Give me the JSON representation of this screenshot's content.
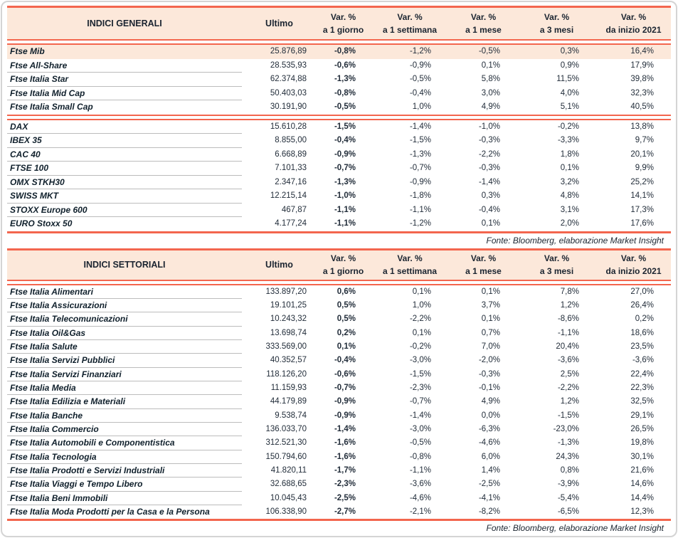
{
  "colors": {
    "accent_red": "#f3664e",
    "header_peach": "#fce8da",
    "row_highlight_peach": "#fce8da",
    "text_dark": "#10202c",
    "separator_gray": "#bcbcbc"
  },
  "columns": {
    "value_header": "Ultimo",
    "var_header": "Var. %",
    "periods": [
      "a 1 giorno",
      "a 1 settimana",
      "a 1 mese",
      "a 3 mesi",
      "da inizio 2021"
    ]
  },
  "tables": [
    {
      "title": "INDICI GENERALI",
      "source_note": "Fonte: Bloomberg, elaborazione Market Insight",
      "groups": [
        {
          "rows": [
            {
              "name": "Ftse Mib",
              "highlight": true,
              "values": [
                "25.876,89",
                "-0,8%",
                "-1,2%",
                "-0,5%",
                "0,3%",
                "16,4%"
              ]
            },
            {
              "name": "Ftse All-Share",
              "values": [
                "28.535,93",
                "-0,6%",
                "-0,9%",
                "0,1%",
                "0,9%",
                "17,9%"
              ]
            },
            {
              "name": "Ftse Italia Star",
              "values": [
                "62.374,88",
                "-1,3%",
                "-0,5%",
                "5,8%",
                "11,5%",
                "39,8%"
              ]
            },
            {
              "name": "Ftse Italia Mid Cap",
              "values": [
                "50.403,03",
                "-0,8%",
                "-0,4%",
                "3,0%",
                "4,0%",
                "32,3%"
              ]
            },
            {
              "name": "Ftse Italia Small Cap",
              "values": [
                "30.191,90",
                "-0,5%",
                "1,0%",
                "4,9%",
                "5,1%",
                "40,5%"
              ]
            }
          ]
        },
        {
          "rows": [
            {
              "name": "DAX",
              "values": [
                "15.610,28",
                "-1,5%",
                "-1,4%",
                "-1,0%",
                "-0,2%",
                "13,8%"
              ]
            },
            {
              "name": "IBEX 35",
              "values": [
                "8.855,00",
                "-0,4%",
                "-1,5%",
                "-0,3%",
                "-3,3%",
                "9,7%"
              ]
            },
            {
              "name": "CAC 40",
              "values": [
                "6.668,89",
                "-0,9%",
                "-1,3%",
                "-2,2%",
                "1,8%",
                "20,1%"
              ]
            },
            {
              "name": "FTSE 100",
              "values": [
                "7.101,33",
                "-0,7%",
                "-0,7%",
                "-0,3%",
                "0,1%",
                "9,9%"
              ]
            },
            {
              "name": "OMX STKH30",
              "values": [
                "2.347,16",
                "-1,3%",
                "-0,9%",
                "-1,4%",
                "3,2%",
                "25,2%"
              ]
            },
            {
              "name": "SWISS MKT",
              "values": [
                "12.215,14",
                "-1,0%",
                "-1,8%",
                "0,3%",
                "4,8%",
                "14,1%"
              ]
            },
            {
              "name": "STOXX Europe 600",
              "values": [
                "467,87",
                "-1,1%",
                "-1,1%",
                "-0,4%",
                "3,1%",
                "17,3%"
              ]
            },
            {
              "name": "EURO Stoxx 50",
              "values": [
                "4.177,24",
                "-1,1%",
                "-1,2%",
                "0,1%",
                "2,0%",
                "17,6%"
              ]
            }
          ]
        }
      ]
    },
    {
      "title": "INDICI SETTORIALI",
      "source_note": "Fonte: Bloomberg, elaborazione Market Insight",
      "groups": [
        {
          "rows": [
            {
              "name": "Ftse Italia Alimentari",
              "values": [
                "133.897,20",
                "0,6%",
                "0,1%",
                "0,1%",
                "7,8%",
                "27,0%"
              ]
            },
            {
              "name": "Ftse Italia Assicurazioni",
              "values": [
                "19.101,25",
                "0,5%",
                "1,0%",
                "3,7%",
                "1,2%",
                "26,4%"
              ]
            },
            {
              "name": "Ftse Italia Telecomunicazioni",
              "values": [
                "10.243,32",
                "0,5%",
                "-2,2%",
                "0,1%",
                "-8,6%",
                "0,2%"
              ]
            },
            {
              "name": "Ftse Italia Oil&Gas",
              "values": [
                "13.698,74",
                "0,2%",
                "0,1%",
                "0,7%",
                "-1,1%",
                "18,6%"
              ]
            },
            {
              "name": "Ftse Italia Salute",
              "values": [
                "333.569,00",
                "0,1%",
                "-0,2%",
                "7,0%",
                "20,4%",
                "23,5%"
              ]
            },
            {
              "name": "Ftse Italia Servizi Pubblici",
              "values": [
                "40.352,57",
                "-0,4%",
                "-3,0%",
                "-2,0%",
                "-3,6%",
                "-3,6%"
              ]
            },
            {
              "name": "Ftse Italia Servizi Finanziari",
              "values": [
                "118.126,20",
                "-0,6%",
                "-1,5%",
                "-0,3%",
                "2,5%",
                "22,4%"
              ]
            },
            {
              "name": "Ftse Italia Media",
              "values": [
                "11.159,93",
                "-0,7%",
                "-2,3%",
                "-0,1%",
                "-2,2%",
                "22,3%"
              ]
            },
            {
              "name": "Ftse Italia Edilizia e Materiali",
              "values": [
                "44.179,89",
                "-0,9%",
                "-0,7%",
                "4,9%",
                "1,2%",
                "32,5%"
              ]
            },
            {
              "name": "Ftse Italia Banche",
              "values": [
                "9.538,74",
                "-0,9%",
                "-1,4%",
                "0,0%",
                "-1,5%",
                "29,1%"
              ]
            },
            {
              "name": "Ftse Italia Commercio",
              "values": [
                "136.033,70",
                "-1,4%",
                "-3,0%",
                "-6,3%",
                "-23,0%",
                "26,5%"
              ]
            },
            {
              "name": "Ftse Italia Automobili e Componentistica",
              "values": [
                "312.521,30",
                "-1,6%",
                "-0,5%",
                "-4,6%",
                "-1,3%",
                "19,8%"
              ]
            },
            {
              "name": "Ftse Italia Tecnologia",
              "values": [
                "150.794,60",
                "-1,6%",
                "-0,8%",
                "6,0%",
                "24,3%",
                "30,1%"
              ]
            },
            {
              "name": "Ftse Italia Prodotti e Servizi Industriali",
              "values": [
                "41.820,11",
                "-1,7%",
                "-1,1%",
                "1,4%",
                "0,8%",
                "21,6%"
              ]
            },
            {
              "name": "Ftse Italia Viaggi e Tempo Libero",
              "values": [
                "32.688,65",
                "-2,3%",
                "-3,6%",
                "-2,5%",
                "-3,9%",
                "14,6%"
              ]
            },
            {
              "name": "Ftse Italia Beni Immobili",
              "values": [
                "10.045,43",
                "-2,5%",
                "-4,6%",
                "-4,1%",
                "-5,4%",
                "14,4%"
              ]
            },
            {
              "name": "Ftse Italia Moda Prodotti per la Casa e la Persona",
              "values": [
                "106.338,90",
                "-2,7%",
                "-2,1%",
                "-8,2%",
                "-6,5%",
                "12,3%"
              ]
            }
          ]
        }
      ]
    }
  ]
}
